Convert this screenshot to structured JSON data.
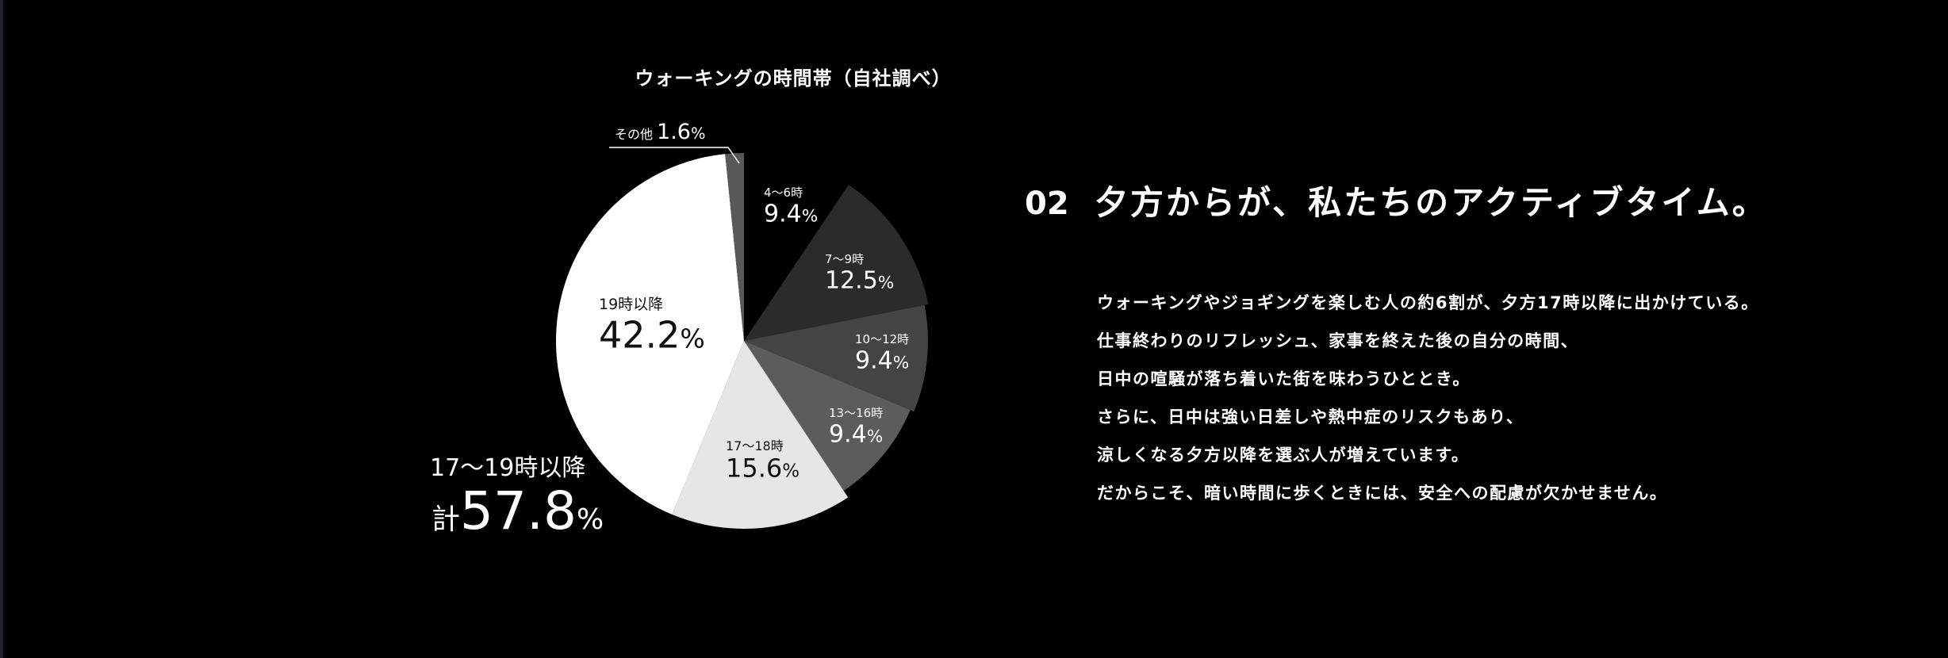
{
  "chart_data": {
    "type": "pie",
    "title": "ウォーキングの時間帯（自社調べ）",
    "slices": [
      {
        "label": "4〜6時",
        "value": 9.4,
        "value_text": "9.4",
        "color": "#000000",
        "label_color": "#ffffff"
      },
      {
        "label": "7〜9時",
        "value": 12.5,
        "value_text": "12.5",
        "color": "#2b2b2b",
        "label_color": "#ffffff"
      },
      {
        "label": "10〜12時",
        "value": 9.4,
        "value_text": "9.4",
        "color": "#444444",
        "label_color": "#ffffff"
      },
      {
        "label": "13〜16時",
        "value": 9.4,
        "value_text": "9.4",
        "color": "#5c5c5c",
        "label_color": "#ffffff"
      },
      {
        "label": "17〜18時",
        "value": 15.6,
        "value_text": "15.6",
        "color": "#e6e6e6",
        "label_color": "#111111"
      },
      {
        "label": "19時以降",
        "value": 42.2,
        "value_text": "42.2",
        "color": "#ffffff",
        "label_color": "#111111"
      },
      {
        "label": "その他",
        "value": 1.6,
        "value_text": "1.6",
        "color": "#585858",
        "label_color": "#ffffff"
      }
    ],
    "percent_sign": "%",
    "callout": {
      "line1": "17〜19時以降",
      "prefix": "計",
      "value": "57.8",
      "unit": "%"
    }
  },
  "section": {
    "number": "02",
    "title": "夕方からが、私たちのアクティブタイム。",
    "lines": [
      "ウォーキングやジョギングを楽しむ人の約6割が、夕方17時以降に出かけている。",
      "仕事終わりのリフレッシュ、家事を終えた後の自分の時間、",
      "日中の喧騒が落ち着いた街を味わうひととき。",
      "さらに、日中は強い日差しや熱中症のリスクもあり、",
      "涼しくなる夕方以降を選ぶ人が増えています。",
      "だからこそ、暗い時間に歩くときには、安全への配慮が欠かせません。"
    ]
  },
  "colors": {
    "background": "#000000",
    "text": "#ffffff"
  }
}
